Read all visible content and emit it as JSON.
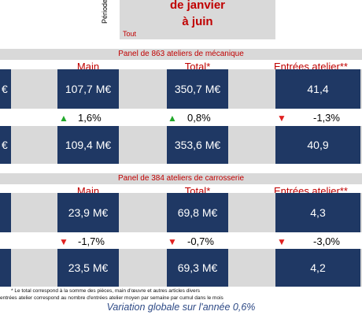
{
  "header": {
    "periode_label": "Période",
    "period_title_line1": "de janvier",
    "period_title_line2": "à juin",
    "scope": "Tout"
  },
  "colors": {
    "navy": "#1f3864",
    "gray": "#d9d9d9",
    "red": "#c00000",
    "up_green": "#22a82b",
    "down_red": "#e02020"
  },
  "panel1": {
    "title": "Panel de 863 ateliers de mécanique",
    "col_main": "Main d'œuvre",
    "col_total": "Total*",
    "col_entrees": "Entrées atelier**",
    "left_stub_top": "€",
    "left_stub_bottom": "€",
    "row_prev": {
      "main": "107,7 M€",
      "total": "350,7 M€",
      "entrees": "41,4"
    },
    "variation": {
      "main": {
        "direction": "up-arrow-icon",
        "value": "1,6%"
      },
      "total": {
        "direction": "up-arrow-icon",
        "value": "0,8%"
      },
      "entrees": {
        "direction": "down-arrow-icon",
        "value": "-1,3%"
      }
    },
    "row_curr": {
      "main": "109,4 M€",
      "total": "353,6 M€",
      "entrees": "40,9"
    }
  },
  "panel2": {
    "title": "Panel de 384 ateliers de carrosserie",
    "col_main": "Main d'œuvre",
    "col_total": "Total*",
    "col_entrees": "Entrées atelier**",
    "row_prev": {
      "main": "23,9 M€",
      "total": "69,8 M€",
      "entrees": "4,3"
    },
    "variation": {
      "main": {
        "direction": "down-arrow-icon",
        "value": "-1,7%"
      },
      "total": {
        "direction": "down-arrow-icon",
        "value": "-0,7%"
      },
      "entrees": {
        "direction": "down-arrow-icon",
        "value": "-3,0%"
      }
    },
    "row_curr": {
      "main": "23,5 M€",
      "total": "69,3 M€",
      "entrees": "4,2"
    }
  },
  "footnotes": {
    "line1": "* Le total correspond à la somme des pièces, main d'œuvre et autres articles divers",
    "line2": "entrées atelier correspond au nombre d'entrées atelier moyen par semaine par cumul dans le mois"
  },
  "summary": "Variation globale sur l'année 0,6%"
}
